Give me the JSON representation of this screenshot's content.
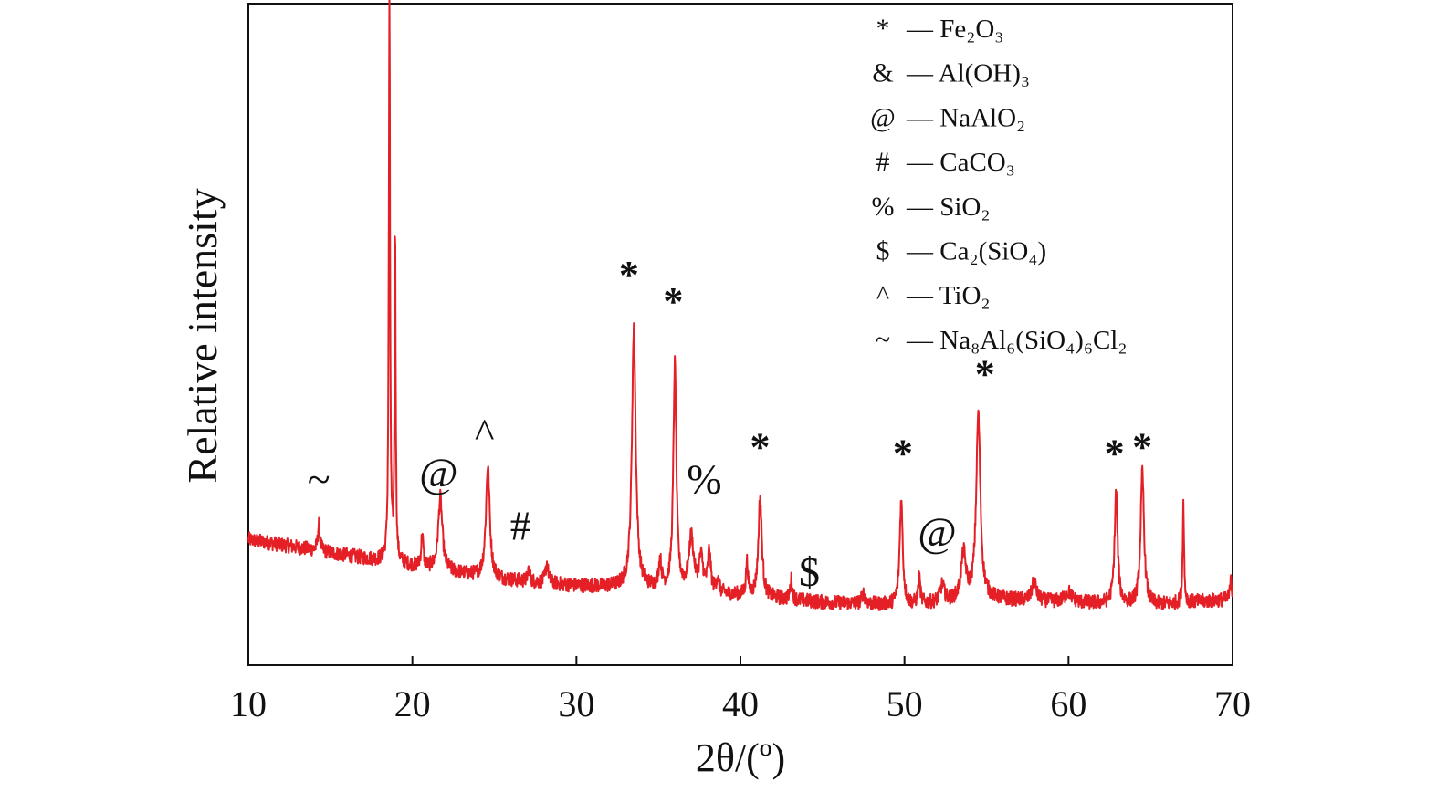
{
  "colors": {
    "line": "#e41f26",
    "axis": "#111111",
    "text": "#111111"
  },
  "chart_data": {
    "type": "line",
    "xlabel": "2θ/(º)",
    "ylabel": "Relative intensity",
    "xlim": [
      10,
      70
    ],
    "xticks": [
      "10",
      "20",
      "30",
      "40",
      "50",
      "60",
      "70"
    ],
    "ylim": [
      0,
      100
    ],
    "y_ticks_shown": false,
    "grid": false,
    "legend_position": "top-right",
    "legend": [
      {
        "symbol": "*",
        "text": "— Fe₂O₃"
      },
      {
        "symbol": "&",
        "text": "— Al(OH)₃"
      },
      {
        "symbol": "@",
        "text": "— NaAlO₂"
      },
      {
        "symbol": "#",
        "text": "— CaCO₃"
      },
      {
        "symbol": "%",
        "text": "— SiO₂"
      },
      {
        "symbol": "$",
        "text": "— Ca₂(SiO₄)"
      },
      {
        "symbol": "^",
        "text": "— TiO₂"
      },
      {
        "symbol": "~",
        "text": "— Na₈Al₆(SiO₄)₆Cl₂"
      }
    ],
    "background": [
      [
        10,
        19
      ],
      [
        15,
        17
      ],
      [
        20,
        15
      ],
      [
        25,
        13
      ],
      [
        30,
        12
      ],
      [
        35,
        11.5
      ],
      [
        40,
        10.5
      ],
      [
        45,
        9.5
      ],
      [
        50,
        9
      ],
      [
        55,
        10
      ],
      [
        60,
        9.5
      ],
      [
        65,
        9
      ],
      [
        70,
        10
      ]
    ],
    "peaks": [
      {
        "x": 14.3,
        "height": 4,
        "width": 0.15
      },
      {
        "x": 18.6,
        "height": 86,
        "width": 0.09
      },
      {
        "x": 18.95,
        "height": 50,
        "width": 0.08
      },
      {
        "x": 20.6,
        "height": 5,
        "width": 0.15
      },
      {
        "x": 21.7,
        "height": 11,
        "width": 0.3
      },
      {
        "x": 24.6,
        "height": 17,
        "width": 0.28
      },
      {
        "x": 27.1,
        "height": 2,
        "width": 0.15
      },
      {
        "x": 28.2,
        "height": 3,
        "width": 0.2
      },
      {
        "x": 33.5,
        "height": 39,
        "width": 0.28
      },
      {
        "x": 35.1,
        "height": 4,
        "width": 0.2
      },
      {
        "x": 36.0,
        "height": 34,
        "width": 0.22
      },
      {
        "x": 37.0,
        "height": 8,
        "width": 0.35
      },
      {
        "x": 37.6,
        "height": 5,
        "width": 0.3
      },
      {
        "x": 38.1,
        "height": 6,
        "width": 0.2
      },
      {
        "x": 38.6,
        "height": 2,
        "width": 0.2
      },
      {
        "x": 40.4,
        "height": 5,
        "width": 0.15
      },
      {
        "x": 41.2,
        "height": 15,
        "width": 0.25
      },
      {
        "x": 43.1,
        "height": 3,
        "width": 0.15
      },
      {
        "x": 47.5,
        "height": 1.5,
        "width": 0.25
      },
      {
        "x": 49.8,
        "height": 16,
        "width": 0.22
      },
      {
        "x": 50.9,
        "height": 4,
        "width": 0.15
      },
      {
        "x": 52.3,
        "height": 2.5,
        "width": 0.3
      },
      {
        "x": 53.6,
        "height": 7,
        "width": 0.35
      },
      {
        "x": 54.5,
        "height": 28,
        "width": 0.3
      },
      {
        "x": 57.9,
        "height": 3,
        "width": 0.3
      },
      {
        "x": 60.0,
        "height": 1.5,
        "width": 0.5
      },
      {
        "x": 62.9,
        "height": 17,
        "width": 0.22
      },
      {
        "x": 64.5,
        "height": 20,
        "width": 0.25
      },
      {
        "x": 67.0,
        "height": 15,
        "width": 0.1
      },
      {
        "x": 69.9,
        "height": 4,
        "width": 0.1
      }
    ],
    "annotations": [
      {
        "text": "~",
        "x": 14.3,
        "y": 26
      },
      {
        "text": "&",
        "x": 18.8,
        "y": 101
      },
      {
        "text": "@",
        "x": 21.6,
        "y": 27
      },
      {
        "text": "^",
        "x": 24.4,
        "y": 33
      },
      {
        "text": "#",
        "x": 26.6,
        "y": 19
      },
      {
        "text": "*",
        "x": 33.2,
        "y": 57
      },
      {
        "text": "*",
        "x": 35.9,
        "y": 53
      },
      {
        "text": "%",
        "x": 37.8,
        "y": 26
      },
      {
        "text": "*",
        "x": 41.2,
        "y": 31
      },
      {
        "text": "$",
        "x": 44.2,
        "y": 12
      },
      {
        "text": "*",
        "x": 49.9,
        "y": 30
      },
      {
        "text": "@",
        "x": 52.0,
        "y": 18
      },
      {
        "text": "*",
        "x": 54.9,
        "y": 42
      },
      {
        "text": "*",
        "x": 62.8,
        "y": 30
      },
      {
        "text": "*",
        "x": 64.5,
        "y": 31
      }
    ]
  }
}
